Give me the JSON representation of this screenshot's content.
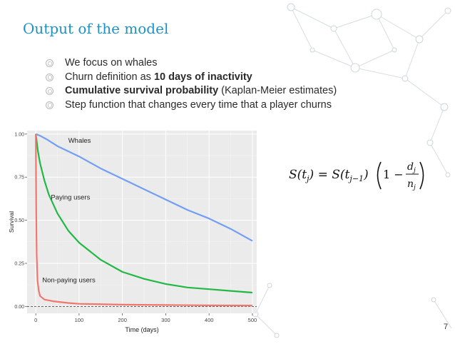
{
  "slide": {
    "title": "Output of the model",
    "page_number": "7"
  },
  "bullets": [
    {
      "parts": [
        {
          "text": "We focus on whales",
          "bold": false
        }
      ]
    },
    {
      "parts": [
        {
          "text": "Churn definition as ",
          "bold": false
        },
        {
          "text": "10 days of inactivity",
          "bold": true
        }
      ]
    },
    {
      "parts": [
        {
          "text": "Cumulative survival probability",
          "bold": true
        },
        {
          "text": " (Kaplan-Meier estimates)",
          "bold": false
        }
      ]
    },
    {
      "parts": [
        {
          "text": "Step function that changes every time that a player churns",
          "bold": false
        }
      ]
    }
  ],
  "formula": {
    "lhs": "S(t",
    "lhs_sub": "j",
    "eq": ") = S(t",
    "rhs_sub": "j−1",
    "open": ")",
    "one_minus": "1 −",
    "num": "d",
    "num_sub": "j",
    "den": "n",
    "den_sub": "j"
  },
  "colors": {
    "title": "#1c93c7",
    "whales": "#729ff6",
    "paying": "#22b845",
    "nonpaying": "#f0766e"
  },
  "chart_data": {
    "type": "line",
    "xlabel": "Time (days)",
    "ylabel": "Survival",
    "xlim": [
      -20,
      510
    ],
    "ylim": [
      -0.04,
      1.02
    ],
    "x_ticks": [
      0,
      100,
      200,
      300,
      400,
      500
    ],
    "y_ticks": [
      0.0,
      0.25,
      0.5,
      0.75,
      1.0
    ],
    "x_tick_labels": [
      "0",
      "100",
      "200",
      "300",
      "400",
      "500"
    ],
    "y_tick_labels": [
      "0.00",
      "0.25",
      "0.50",
      "0.75",
      "1.00"
    ],
    "grid": true,
    "reference_line_y": 0.0,
    "series": [
      {
        "name": "Whales",
        "color": "#729ff6",
        "x": [
          0,
          10,
          25,
          50,
          75,
          100,
          150,
          200,
          250,
          300,
          350,
          400,
          450,
          500
        ],
        "y": [
          1.0,
          0.99,
          0.97,
          0.93,
          0.9,
          0.87,
          0.8,
          0.74,
          0.68,
          0.62,
          0.56,
          0.51,
          0.45,
          0.38
        ]
      },
      {
        "name": "Paying users",
        "color": "#22b845",
        "x": [
          0,
          5,
          10,
          20,
          30,
          50,
          75,
          100,
          150,
          200,
          250,
          300,
          350,
          400,
          450,
          500
        ],
        "y": [
          1.0,
          0.9,
          0.83,
          0.73,
          0.65,
          0.54,
          0.44,
          0.37,
          0.27,
          0.2,
          0.16,
          0.13,
          0.11,
          0.1,
          0.09,
          0.08
        ]
      },
      {
        "name": "Non-paying users",
        "color": "#f0766e",
        "x": [
          0,
          1,
          2,
          4,
          7,
          10,
          20,
          40,
          75,
          100,
          200,
          300,
          400,
          500
        ],
        "y": [
          1.0,
          0.55,
          0.3,
          0.15,
          0.09,
          0.06,
          0.04,
          0.03,
          0.02,
          0.015,
          0.01,
          0.008,
          0.006,
          0.005
        ]
      }
    ],
    "annotations": [
      {
        "text": "Whales",
        "x": 75,
        "y": 0.95
      },
      {
        "text": "Paying users",
        "x": 35,
        "y": 0.62
      },
      {
        "text": "Non-paying users",
        "x": 15,
        "y": 0.14
      }
    ]
  }
}
